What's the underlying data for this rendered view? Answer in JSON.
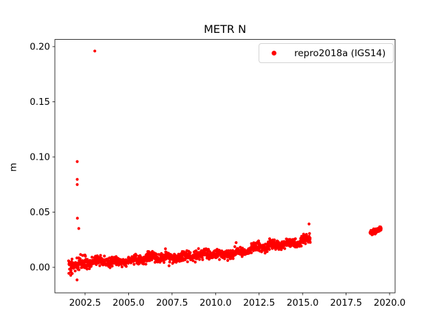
{
  "title": "METR N",
  "ylabel": "m",
  "legend": {
    "label": "repro2018a (IGS14)",
    "marker_color": "#ff0000"
  },
  "chart_data": {
    "type": "scatter",
    "title": "METR N",
    "xlabel": "",
    "ylabel": "m",
    "grid": false,
    "legend_position": "upper right",
    "xlim": [
      2000.766,
      2020.315
    ],
    "ylim": [
      -0.0231,
      0.20646
    ],
    "x_ticks": {
      "values": [
        2002.5,
        2005.0,
        2007.5,
        2010.0,
        2012.5,
        2015.0,
        2017.5,
        2020.0
      ],
      "labels": [
        "2002.5",
        "2005.0",
        "2007.5",
        "2010.0",
        "2012.5",
        "2015.0",
        "2017.5",
        "2020.0"
      ]
    },
    "y_ticks": {
      "values": [
        0.0,
        0.05,
        0.1,
        0.15,
        0.2
      ],
      "labels": [
        "0.00",
        "0.05",
        "0.10",
        "0.15",
        "0.20"
      ]
    },
    "series": [
      {
        "name": "repro2018a (IGS14)",
        "color": "#ff0000",
        "marker": "dot",
        "marker_radius": 2.1,
        "seed": 42,
        "outliers": [
          [
            2003.06,
            0.196
          ],
          [
            2002.05,
            0.0958
          ],
          [
            2002.05,
            0.0797
          ],
          [
            2002.05,
            0.075
          ],
          [
            2002.06,
            0.0445
          ],
          [
            2002.14,
            0.0352
          ],
          [
            2002.04,
            -0.0114
          ],
          [
            2001.68,
            -0.0042
          ],
          [
            2015.37,
            0.0393
          ],
          [
            2007.12,
            0.0168
          ]
        ],
        "band": {
          "t_start": 2001.55,
          "t_end": 2015.45,
          "n": 1300,
          "trend": [
            [
              2001.55,
              0.002
            ],
            [
              2003.5,
              0.005
            ],
            [
              2005.5,
              0.007
            ],
            [
              2008.0,
              0.0098
            ],
            [
              2010.6,
              0.012
            ],
            [
              2014.2,
              0.0224
            ],
            [
              2015.45,
              0.0258
            ]
          ],
          "noise_sd": 0.0021,
          "annual_amp": 0.0011,
          "meander_amp": 0.0009,
          "meander_period": 3.2,
          "meander_phase": 2002.2,
          "early_spread_until": 2002.7,
          "early_spread_factor": 1.6,
          "stray_every": 90,
          "stray_factor": 2.0
        },
        "cluster": {
          "t_start": 2018.87,
          "t_end": 2019.52,
          "n": 150,
          "v_start": 0.0312,
          "v_end": 0.0348,
          "noise_sd": 0.0011
        }
      }
    ]
  }
}
